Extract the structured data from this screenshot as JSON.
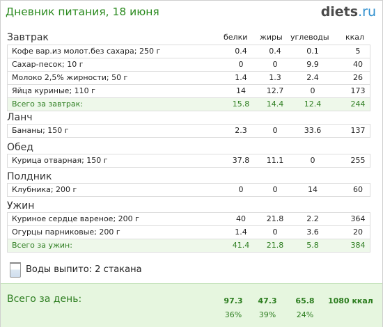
{
  "header": {
    "title": "Дневник питания, 18 июня",
    "brand_main": "diets",
    "brand_tld": "ru"
  },
  "columns": {
    "protein": "белки",
    "fat": "жиры",
    "carbs": "углеводы",
    "kcal": "ккал"
  },
  "meals": [
    {
      "title": "Завтрак",
      "items": [
        [
          "Кофе вар.из молот.без сахара; 250 г",
          "0.4",
          "0.4",
          "0.1",
          "5"
        ],
        [
          "Сахар-песок; 10 г",
          "0",
          "0",
          "9.9",
          "40"
        ],
        [
          "Молоко 2,5% жирности; 50 г",
          "1.4",
          "1.3",
          "2.4",
          "26"
        ],
        [
          "Яйца куриные; 110 г",
          "14",
          "12.7",
          "0",
          "173"
        ]
      ],
      "total": [
        "Всего за завтрак:",
        "15.8",
        "14.4",
        "12.4",
        "244"
      ]
    },
    {
      "title": "Ланч",
      "items": [
        [
          "Бананы; 150 г",
          "2.3",
          "0",
          "33.6",
          "137"
        ]
      ]
    },
    {
      "title": "Обед",
      "items": [
        [
          "Курица отварная; 150 г",
          "37.8",
          "11.1",
          "0",
          "255"
        ]
      ]
    },
    {
      "title": "Полдник",
      "items": [
        [
          "Клубника; 200 г",
          "0",
          "0",
          "14",
          "60"
        ]
      ]
    },
    {
      "title": "Ужин",
      "items": [
        [
          "Куриное сердце вареное; 200 г",
          "40",
          "21.8",
          "2.2",
          "364"
        ],
        [
          "Огурцы парниковые; 200 г",
          "1.4",
          "0",
          "3.6",
          "20"
        ]
      ],
      "total": [
        "Всего за ужин:",
        "41.4",
        "21.8",
        "5.8",
        "384"
      ]
    }
  ],
  "water": {
    "text": "Воды выпито: 2 стакана",
    "icon": "glass-icon"
  },
  "day_total": {
    "label": "Всего за день:",
    "protein": "97.3",
    "fat": "47.3",
    "carbs": "65.8",
    "kcal": "1080 ккал",
    "protein_pct": "36%",
    "fat_pct": "39%",
    "carbs_pct": "24%"
  }
}
